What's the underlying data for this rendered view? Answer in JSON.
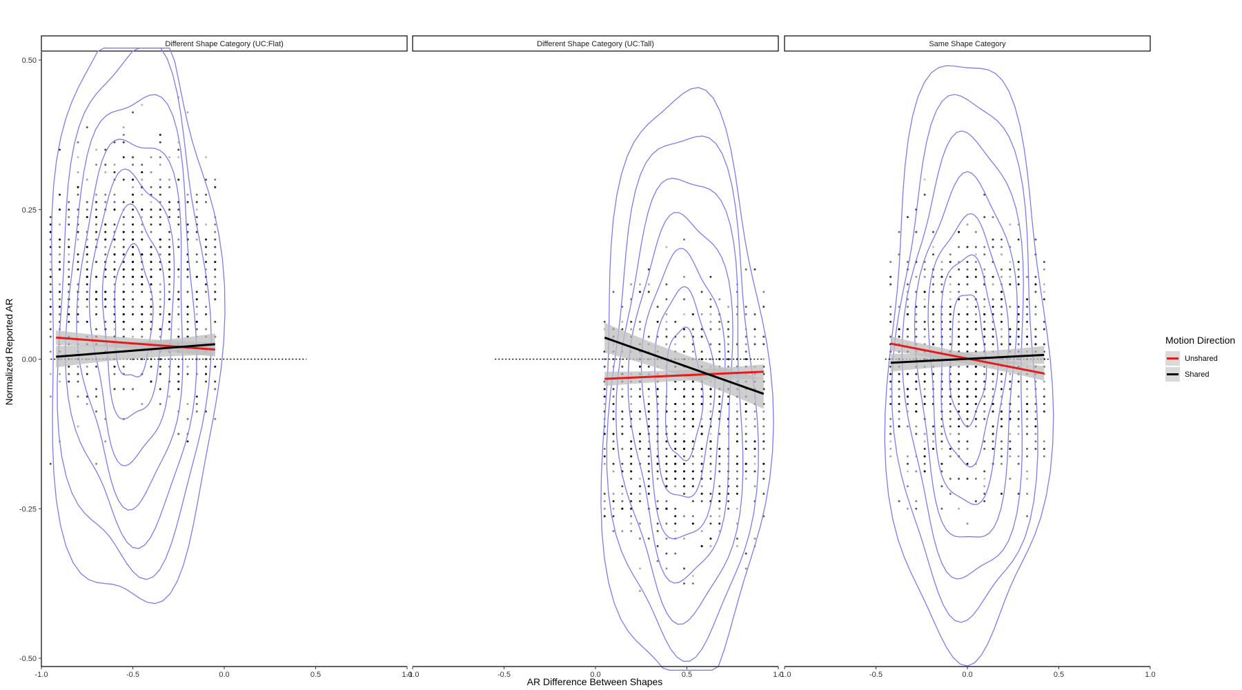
{
  "chart_data": {
    "type": "scatter",
    "xlabel": "AR Difference Between Shapes",
    "ylabel": "Normalized Reported AR",
    "xlim": [
      -1.0,
      1.0
    ],
    "ylim": [
      -0.5,
      0.5
    ],
    "x_ticks": [
      "-1.0",
      "-0.5",
      "0.0",
      "0.5",
      "1.0"
    ],
    "y_ticks": [
      "-0.50",
      "-0.25",
      "0.00",
      "0.25",
      "0.50"
    ],
    "x_tick_values": [
      -1.0,
      -0.5,
      0.0,
      0.5,
      1.0
    ],
    "y_tick_values": [
      -0.5,
      -0.25,
      0.0,
      0.25,
      0.5
    ],
    "grid": false,
    "legend": {
      "title": "Motion Direction",
      "placement": "right",
      "entries": [
        {
          "label": "Unshared",
          "color": "#e41a1c"
        },
        {
          "label": "Shared",
          "color": "#000000"
        }
      ]
    },
    "colors": {
      "unshared": "#e41a1c",
      "shared": "#000000",
      "contour": "#7b7bf0",
      "ci_band": "#bdbdbd",
      "points": "#000000"
    },
    "panels": [
      {
        "title": "Different Shape Category (UC:Flat)",
        "x_range": [
          -0.95,
          -0.05
        ],
        "x_center": -0.5,
        "y_center": 0.15,
        "dotted_reference": {
          "x": [
            -0.95,
            0.45
          ],
          "y": 0.0
        },
        "series": [
          {
            "name": "Unshared",
            "x": [
              -0.92,
              -0.05
            ],
            "y": [
              0.036,
              0.016
            ],
            "ci": 0.012
          },
          {
            "name": "Shared",
            "x": [
              -0.92,
              -0.05
            ],
            "y": [
              0.004,
              0.025
            ],
            "ci": 0.018
          }
        ]
      },
      {
        "title": "Different Shape Category (UC:Tall)",
        "x_range": [
          0.05,
          0.92
        ],
        "x_center": 0.48,
        "y_center": -0.12,
        "dotted_reference": {
          "x": [
            -0.55,
            0.92
          ],
          "y": 0.0
        },
        "series": [
          {
            "name": "Unshared",
            "x": [
              0.05,
              0.92
            ],
            "y": [
              -0.033,
              -0.021
            ],
            "ci": 0.012
          },
          {
            "name": "Shared",
            "x": [
              0.05,
              0.92
            ],
            "y": [
              0.036,
              -0.058
            ],
            "ci": 0.025
          }
        ]
      },
      {
        "title": "Same Shape Category",
        "x_range": [
          -0.42,
          0.42
        ],
        "x_center": 0.0,
        "y_center": 0.0,
        "dotted_reference": {
          "x": [
            -0.45,
            0.45
          ],
          "y": 0.0
        },
        "series": [
          {
            "name": "Unshared",
            "x": [
              -0.42,
              0.42
            ],
            "y": [
              0.026,
              -0.024
            ],
            "ci": 0.012
          },
          {
            "name": "Shared",
            "x": [
              -0.42,
              0.42
            ],
            "y": [
              -0.006,
              0.007
            ],
            "ci": 0.015
          }
        ]
      }
    ]
  }
}
